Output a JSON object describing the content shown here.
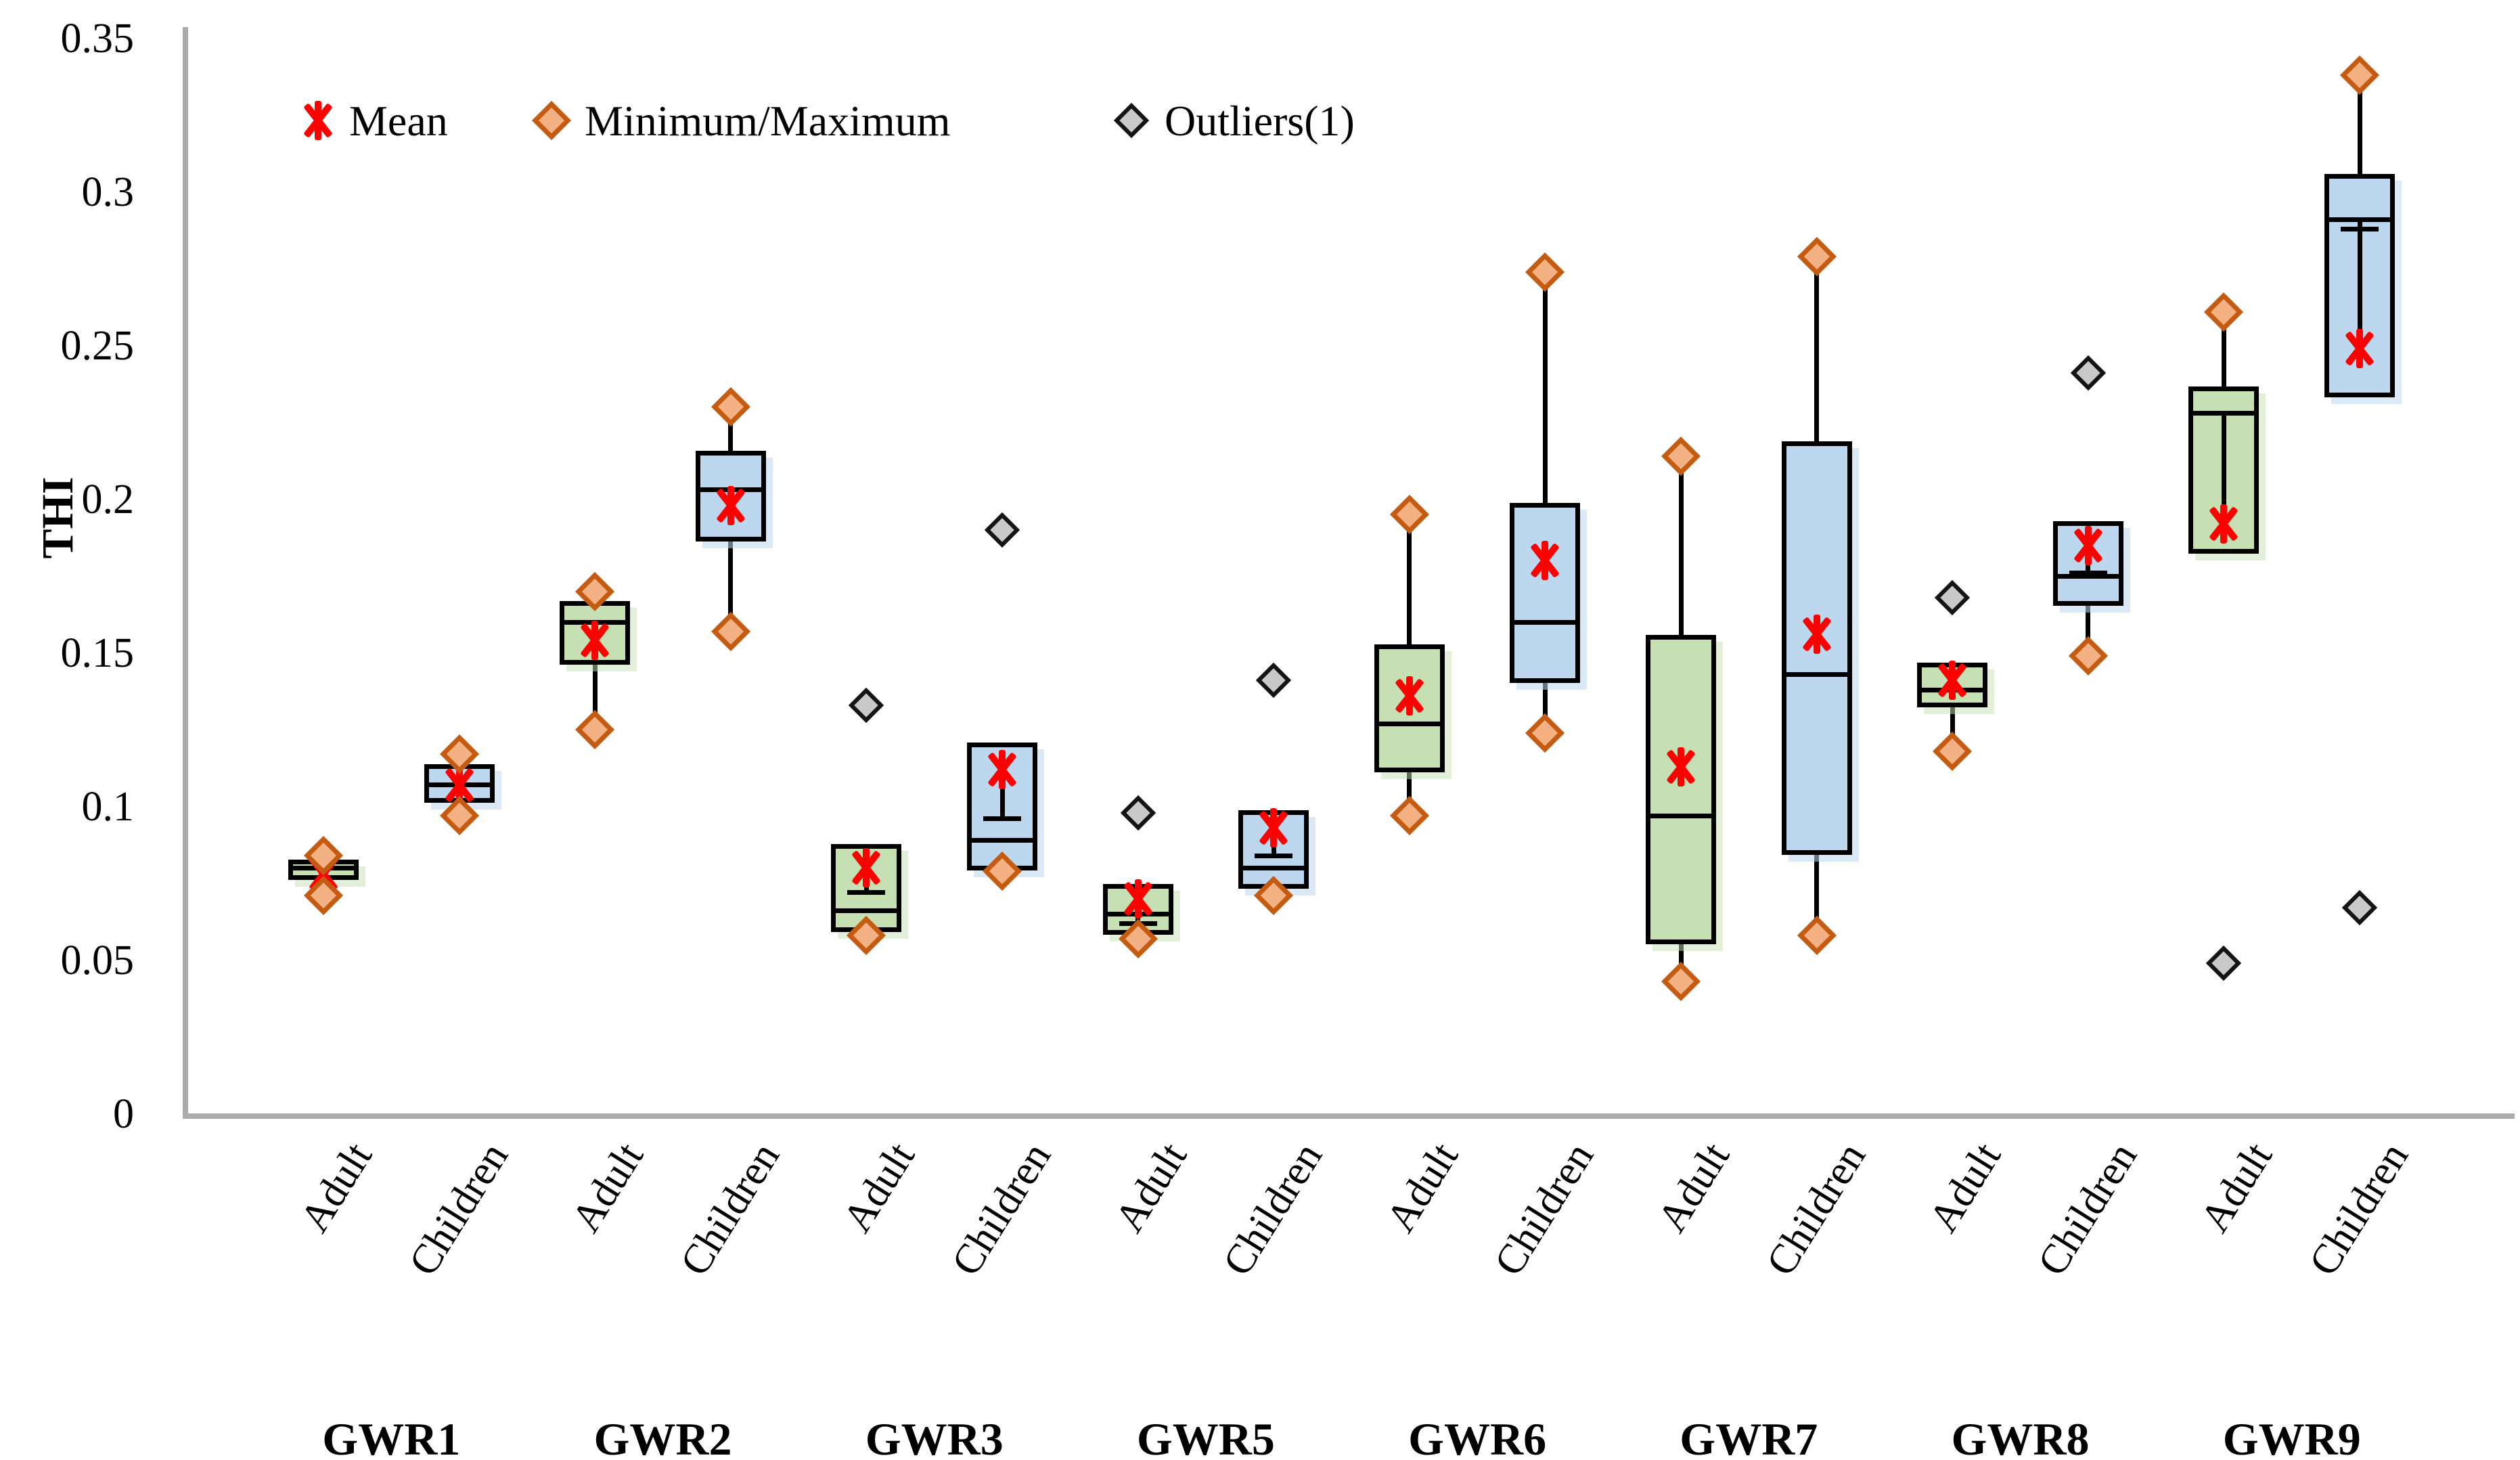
{
  "legend": [
    {
      "label": "Mean",
      "marker": "mean-cross"
    },
    {
      "label": "Minimum/Maximum",
      "marker": "orange-diamond"
    },
    {
      "label": "Outliers(1)",
      "marker": "gray-diamond"
    }
  ],
  "y_axis": {
    "label": "THI",
    "min": 0,
    "max": 0.35,
    "ticks": [
      "0",
      "0.05",
      "0.1",
      "0.15",
      "0.2",
      "0.25",
      "0.3",
      "0.35"
    ],
    "tick_values": [
      0,
      0.05,
      0.1,
      0.15,
      0.2,
      0.25,
      0.3,
      0.35
    ]
  },
  "x_axis": {
    "groups": [
      "GWR1",
      "GWR2",
      "GWR3",
      "GWR5",
      "GWR6",
      "GWR7",
      "GWR8",
      "GWR9"
    ],
    "sub_labels": [
      "Adult",
      "Children"
    ]
  },
  "colors": {
    "adult_box_fill": "#C6E0B4",
    "children_box_fill": "#BDD7EE",
    "box_border": "#000000",
    "minmax_diamond_fill": "#F4B183",
    "minmax_diamond_border": "#C55A11",
    "outlier_diamond_fill": "#C9C9C9",
    "outlier_diamond_border": "#141414",
    "mean_marker": "#FF0000",
    "axis_line": "#ABABAB"
  },
  "chart_data": {
    "type": "box",
    "title": "",
    "xlabel": "",
    "ylabel": "THI",
    "ylim": [
      0,
      0.35
    ],
    "grid": false,
    "legend_position": "top-left-inside",
    "series": [
      {
        "group": "GWR1",
        "category": "Adult",
        "color": "green",
        "min": 0.071,
        "q1": 0.077,
        "median": 0.08,
        "mean": 0.078,
        "q3": 0.082,
        "max": 0.084,
        "outlier": null,
        "inner_line": null
      },
      {
        "group": "GWR1",
        "category": "Children",
        "color": "blue",
        "min": 0.097,
        "q1": 0.102,
        "median": 0.107,
        "mean": 0.107,
        "q3": 0.113,
        "max": 0.117,
        "outlier": null,
        "inner_line": null
      },
      {
        "group": "GWR2",
        "category": "Adult",
        "color": "green",
        "min": 0.125,
        "q1": 0.147,
        "median": 0.16,
        "mean": 0.154,
        "q3": 0.166,
        "max": 0.17,
        "outlier": null,
        "inner_line": null
      },
      {
        "group": "GWR2",
        "category": "Children",
        "color": "blue",
        "min": 0.157,
        "q1": 0.187,
        "median": 0.203,
        "mean": 0.198,
        "q3": 0.215,
        "max": 0.23,
        "outlier": null,
        "inner_line": null
      },
      {
        "group": "GWR3",
        "category": "Adult",
        "color": "green",
        "min": 0.058,
        "q1": 0.06,
        "median": 0.066,
        "mean": 0.08,
        "q3": 0.087,
        "max": null,
        "outlier": {
          "value": 0.133,
          "position": "max"
        },
        "inner_line": {
          "from": 0.08,
          "to": 0.072,
          "cap": 0.072
        }
      },
      {
        "group": "GWR3",
        "category": "Children",
        "color": "blue",
        "min": 0.079,
        "q1": 0.08,
        "median": 0.089,
        "mean": 0.112,
        "q3": 0.12,
        "max": null,
        "outlier": {
          "value": 0.19,
          "position": "max"
        },
        "inner_line": {
          "from": 0.118,
          "to": 0.096,
          "cap": 0.096
        }
      },
      {
        "group": "GWR5",
        "category": "Adult",
        "color": "green",
        "min": 0.057,
        "q1": 0.059,
        "median": 0.065,
        "mean": 0.07,
        "q3": 0.074,
        "max": null,
        "outlier": {
          "value": 0.098,
          "position": "max"
        },
        "inner_line": {
          "from": 0.07,
          "to": 0.062,
          "cap": 0.062
        }
      },
      {
        "group": "GWR5",
        "category": "Children",
        "color": "blue",
        "min": 0.071,
        "q1": 0.074,
        "median": 0.08,
        "mean": 0.093,
        "q3": 0.098,
        "max": null,
        "outlier": {
          "value": 0.141,
          "position": "max"
        },
        "inner_line": {
          "from": 0.093,
          "to": 0.084,
          "cap": 0.084
        }
      },
      {
        "group": "GWR6",
        "category": "Adult",
        "color": "green",
        "min": 0.097,
        "q1": 0.112,
        "median": 0.127,
        "mean": 0.136,
        "q3": 0.152,
        "max": 0.195,
        "outlier": null,
        "inner_line": null
      },
      {
        "group": "GWR6",
        "category": "Children",
        "color": "blue",
        "min": 0.124,
        "q1": 0.141,
        "median": 0.16,
        "mean": 0.18,
        "q3": 0.198,
        "max": 0.274,
        "outlier": null,
        "inner_line": null
      },
      {
        "group": "GWR7",
        "category": "Adult",
        "color": "green",
        "min": 0.043,
        "q1": 0.056,
        "median": 0.097,
        "mean": 0.113,
        "q3": 0.155,
        "max": 0.214,
        "outlier": null,
        "inner_line": null
      },
      {
        "group": "GWR7",
        "category": "Children",
        "color": "blue",
        "min": 0.058,
        "q1": 0.085,
        "median": 0.143,
        "mean": 0.156,
        "q3": 0.218,
        "max": 0.279,
        "outlier": null,
        "inner_line": null
      },
      {
        "group": "GWR8",
        "category": "Adult",
        "color": "green",
        "min": 0.118,
        "q1": 0.133,
        "median": 0.138,
        "mean": 0.141,
        "q3": 0.146,
        "max": null,
        "outlier": {
          "value": 0.168,
          "position": "max"
        },
        "inner_line": null
      },
      {
        "group": "GWR8",
        "category": "Children",
        "color": "blue",
        "min": 0.149,
        "q1": 0.166,
        "median": 0.175,
        "mean": 0.185,
        "q3": 0.192,
        "max": null,
        "outlier": {
          "value": 0.241,
          "position": "max"
        },
        "inner_line": {
          "from": 0.185,
          "to": 0.176,
          "cap": 0.176
        }
      },
      {
        "group": "GWR9",
        "category": "Adult",
        "color": "green",
        "min": null,
        "q1": 0.183,
        "median": 0.228,
        "mean": 0.192,
        "q3": 0.236,
        "max": 0.261,
        "outlier": {
          "value": 0.049,
          "position": "min"
        },
        "inner_line": {
          "from": 0.228,
          "to": 0.192,
          "cap": null
        }
      },
      {
        "group": "GWR9",
        "category": "Children",
        "color": "blue",
        "min": null,
        "q1": 0.234,
        "median": 0.291,
        "mean": 0.249,
        "q3": 0.305,
        "max": 0.338,
        "outlier": {
          "value": 0.067,
          "position": "min"
        },
        "inner_line": {
          "from": 0.291,
          "to": 0.249,
          "cap": 0.288
        }
      }
    ]
  }
}
